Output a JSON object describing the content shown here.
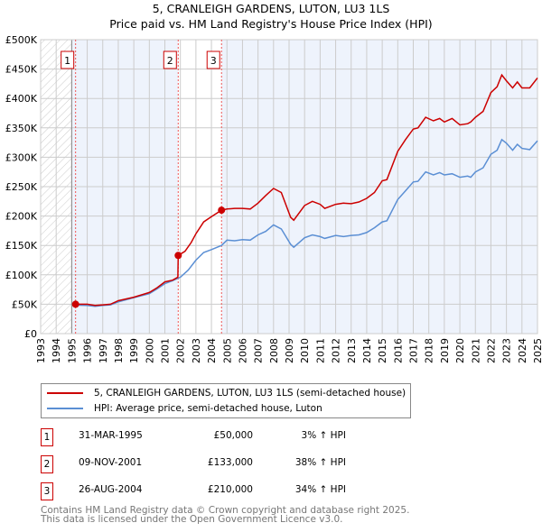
{
  "chart_data": {
    "type": "line",
    "title": "5, CRANLEIGH GARDENS, LUTON, LU3 1LS",
    "subtitle": "Price paid vs. HM Land Registry's House Price Index (HPI)",
    "xlim": [
      1993,
      2025
    ],
    "ylim": [
      0,
      500000
    ],
    "x_ticks": [
      "1993",
      "1994",
      "1995",
      "1996",
      "1997",
      "1998",
      "1999",
      "2000",
      "2001",
      "2002",
      "2003",
      "2004",
      "2005",
      "2006",
      "2007",
      "2008",
      "2009",
      "2010",
      "2011",
      "2012",
      "2013",
      "2014",
      "2015",
      "2016",
      "2017",
      "2018",
      "2019",
      "2020",
      "2021",
      "2022",
      "2023",
      "2024",
      "2025"
    ],
    "y_ticks": [
      {
        "v": 0,
        "label": "£0"
      },
      {
        "v": 50000,
        "label": "£50K"
      },
      {
        "v": 100000,
        "label": "£100K"
      },
      {
        "v": 150000,
        "label": "£150K"
      },
      {
        "v": 200000,
        "label": "£200K"
      },
      {
        "v": 250000,
        "label": "£250K"
      },
      {
        "v": 300000,
        "label": "£300K"
      },
      {
        "v": 350000,
        "label": "£350K"
      },
      {
        "v": 400000,
        "label": "£400K"
      },
      {
        "v": 450000,
        "label": "£450K"
      },
      {
        "v": 500000,
        "label": "£500K"
      }
    ],
    "grid": true,
    "colors": {
      "property": "#cc0000",
      "hpi": "#5b8fd4",
      "shade": "#eef3fc"
    },
    "series": [
      {
        "name": "5, CRANLEIGH GARDENS, LUTON, LU3 1LS (semi-detached house)",
        "color": "#cc0000",
        "x": [
          1995.25,
          1996,
          1996.5,
          1997,
          1997.5,
          1998,
          1999,
          2000,
          2000.5,
          2001,
          2001.5,
          2001.84,
          2001.86,
          2002.3,
          2002.7,
          2003,
          2003.5,
          2004,
          2004.65,
          2005,
          2005.5,
          2006,
          2006.5,
          2007,
          2007.5,
          2008,
          2008.5,
          2009.1,
          2009.3,
          2010,
          2010.5,
          2011,
          2011.3,
          2012,
          2012.5,
          2013,
          2013.5,
          2014,
          2014.5,
          2015,
          2015.3,
          2016,
          2016.5,
          2017,
          2017.3,
          2017.8,
          2018.3,
          2018.7,
          2019,
          2019.5,
          2020,
          2020.5,
          2020.7,
          2021,
          2021.5,
          2022,
          2022.4,
          2022.7,
          2023,
          2023.4,
          2023.7,
          2024,
          2024.5,
          2025
        ],
        "y": [
          50000,
          50000,
          48000,
          49000,
          50000,
          56000,
          62000,
          70000,
          78000,
          88000,
          91000,
          96000,
          133000,
          140000,
          155000,
          170000,
          190000,
          199000,
          210000,
          212000,
          213000,
          213000,
          212000,
          222000,
          235000,
          247000,
          240000,
          198000,
          193000,
          218000,
          225000,
          220000,
          213000,
          220000,
          222000,
          221000,
          224000,
          230000,
          240000,
          260000,
          262000,
          310000,
          330000,
          348000,
          350000,
          368000,
          362000,
          366000,
          360000,
          366000,
          355000,
          357000,
          360000,
          368000,
          378000,
          410000,
          420000,
          440000,
          430000,
          418000,
          428000,
          418000,
          418000,
          435000
        ]
      },
      {
        "name": "HPI: Average price, semi-detached house, Luton",
        "color": "#5b8fd4",
        "x": [
          1995.25,
          1996,
          1996.5,
          1997,
          1997.5,
          1998,
          1999,
          2000,
          2000.5,
          2001,
          2001.5,
          2002,
          2002.5,
          2003,
          2003.5,
          2004,
          2004.65,
          2005,
          2005.5,
          2006,
          2006.5,
          2007,
          2007.5,
          2008,
          2008.5,
          2009.1,
          2009.3,
          2010,
          2010.5,
          2011,
          2011.3,
          2012,
          2012.5,
          2013,
          2013.5,
          2014,
          2014.5,
          2015,
          2015.3,
          2016,
          2016.5,
          2017,
          2017.3,
          2017.8,
          2018.3,
          2018.7,
          2019,
          2019.5,
          2020,
          2020.5,
          2020.7,
          2021,
          2021.5,
          2022,
          2022.4,
          2022.7,
          2023,
          2023.4,
          2023.7,
          2024,
          2024.5,
          2025
        ],
        "y": [
          48500,
          48000,
          46500,
          48000,
          49000,
          54000,
          61000,
          68000,
          76000,
          85000,
          90000,
          96000,
          108000,
          125000,
          138000,
          143000,
          150000,
          159000,
          158000,
          160000,
          159000,
          168000,
          174000,
          185000,
          178000,
          152000,
          147000,
          163000,
          168000,
          165000,
          162000,
          167000,
          165000,
          167000,
          168000,
          172000,
          180000,
          190000,
          192000,
          228000,
          243000,
          258000,
          259000,
          275000,
          270000,
          274000,
          270000,
          272000,
          266000,
          268000,
          266000,
          275000,
          282000,
          305000,
          312000,
          330000,
          324000,
          312000,
          322000,
          315000,
          313000,
          328000
        ]
      }
    ],
    "sales": [
      {
        "n": "1",
        "x": 1995.25,
        "price": 50000
      },
      {
        "n": "2",
        "x": 2001.86,
        "price": 133000
      },
      {
        "n": "3",
        "x": 2004.65,
        "price": 210000
      }
    ],
    "legend_position": "below"
  },
  "legend": {
    "property": "5, CRANLEIGH GARDENS, LUTON, LU3 1LS (semi-detached house)",
    "hpi": "HPI: Average price, semi-detached house, Luton"
  },
  "transactions": [
    {
      "n": "1",
      "date": "31-MAR-1995",
      "price": "£50,000",
      "hpi": "3% ↑ HPI"
    },
    {
      "n": "2",
      "date": "09-NOV-2001",
      "price": "£133,000",
      "hpi": "38% ↑ HPI"
    },
    {
      "n": "3",
      "date": "26-AUG-2004",
      "price": "£210,000",
      "hpi": "34% ↑ HPI"
    }
  ],
  "footer": {
    "line1": "Contains HM Land Registry data © Crown copyright and database right 2025.",
    "line2": "This data is licensed under the Open Government Licence v3.0."
  }
}
